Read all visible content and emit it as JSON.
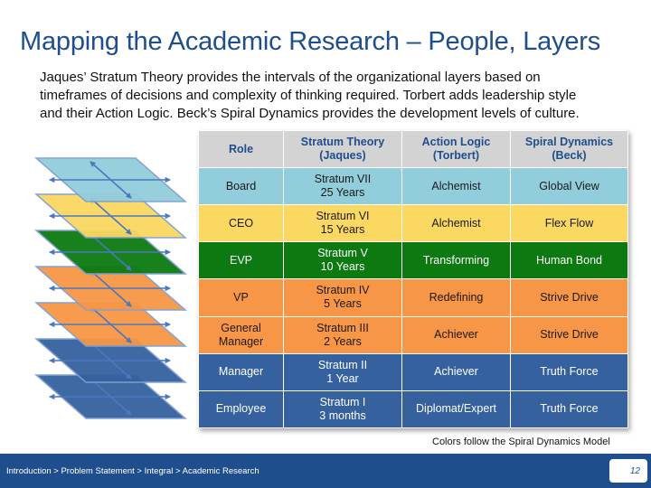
{
  "slide": {
    "title": "Mapping the Academic Research – People, Layers",
    "subtitle_lines": [
      "Jaques’ Stratum Theory provides the intervals of the organizational layers based on",
      "timeframes of decisions and complexity of thinking required. Torbert adds leadership style",
      "and their Action Logic. Beck’s Spiral Dynamics provides the development levels of culture."
    ]
  },
  "table": {
    "headers": [
      {
        "line1": "Role",
        "line2": ""
      },
      {
        "line1": "Stratum Theory",
        "line2": "(Jaques)"
      },
      {
        "line1": "Action Logic",
        "line2": "(Torbert)"
      },
      {
        "line1": "Spiral Dynamics",
        "line2": "(Beck)"
      }
    ],
    "rows": [
      {
        "role": "Board",
        "role2": "",
        "stratum": "Stratum VII",
        "years": "25 Years",
        "action": "Alchemist",
        "spiral": "Global View",
        "bg": "#92cddc",
        "fg": "#1a1a1a"
      },
      {
        "role": "CEO",
        "role2": "",
        "stratum": "Stratum VI",
        "years": "15 Years",
        "action": "Alchemist",
        "spiral": "Flex Flow",
        "bg": "#fbd862",
        "fg": "#1a1a1a"
      },
      {
        "role": "EVP",
        "role2": "",
        "stratum": "Stratum V",
        "years": "10 Years",
        "action": "Transforming",
        "spiral": "Human Bond",
        "bg": "#0c7a10",
        "fg": "#ffffff"
      },
      {
        "role": "VP",
        "role2": "",
        "stratum": "Stratum IV",
        "years": "5 Years",
        "action": "Redefining",
        "spiral": "Strive Drive",
        "bg": "#f79646",
        "fg": "#1a1a1a"
      },
      {
        "role": "General",
        "role2": "Manager",
        "stratum": "Stratum III",
        "years": "2 Years",
        "action": "Achiever",
        "spiral": "Strive Drive",
        "bg": "#f79646",
        "fg": "#1a1a1a"
      },
      {
        "role": "Manager",
        "role2": "",
        "stratum": "Stratum II",
        "years": "1 Year",
        "action": "Achiever",
        "spiral": "Truth Force",
        "bg": "#35619e",
        "fg": "#ffffff"
      },
      {
        "role": "Employee",
        "role2": "",
        "stratum": "Stratum I",
        "years": "3 months",
        "action": "Diplomat/Expert",
        "spiral": "Truth Force",
        "bg": "#35619e",
        "fg": "#ffffff"
      }
    ]
  },
  "layers_graphic": {
    "colors": [
      "#35619e",
      "#35619e",
      "#f79646",
      "#f79646",
      "#0c7a10",
      "#fbd862",
      "#92cddc"
    ]
  },
  "note": "Colors follow the Spiral Dynamics Model",
  "footer": {
    "breadcrumb": "Introduction > Problem Statement > Integral > Academic Research",
    "page_number": "12"
  }
}
